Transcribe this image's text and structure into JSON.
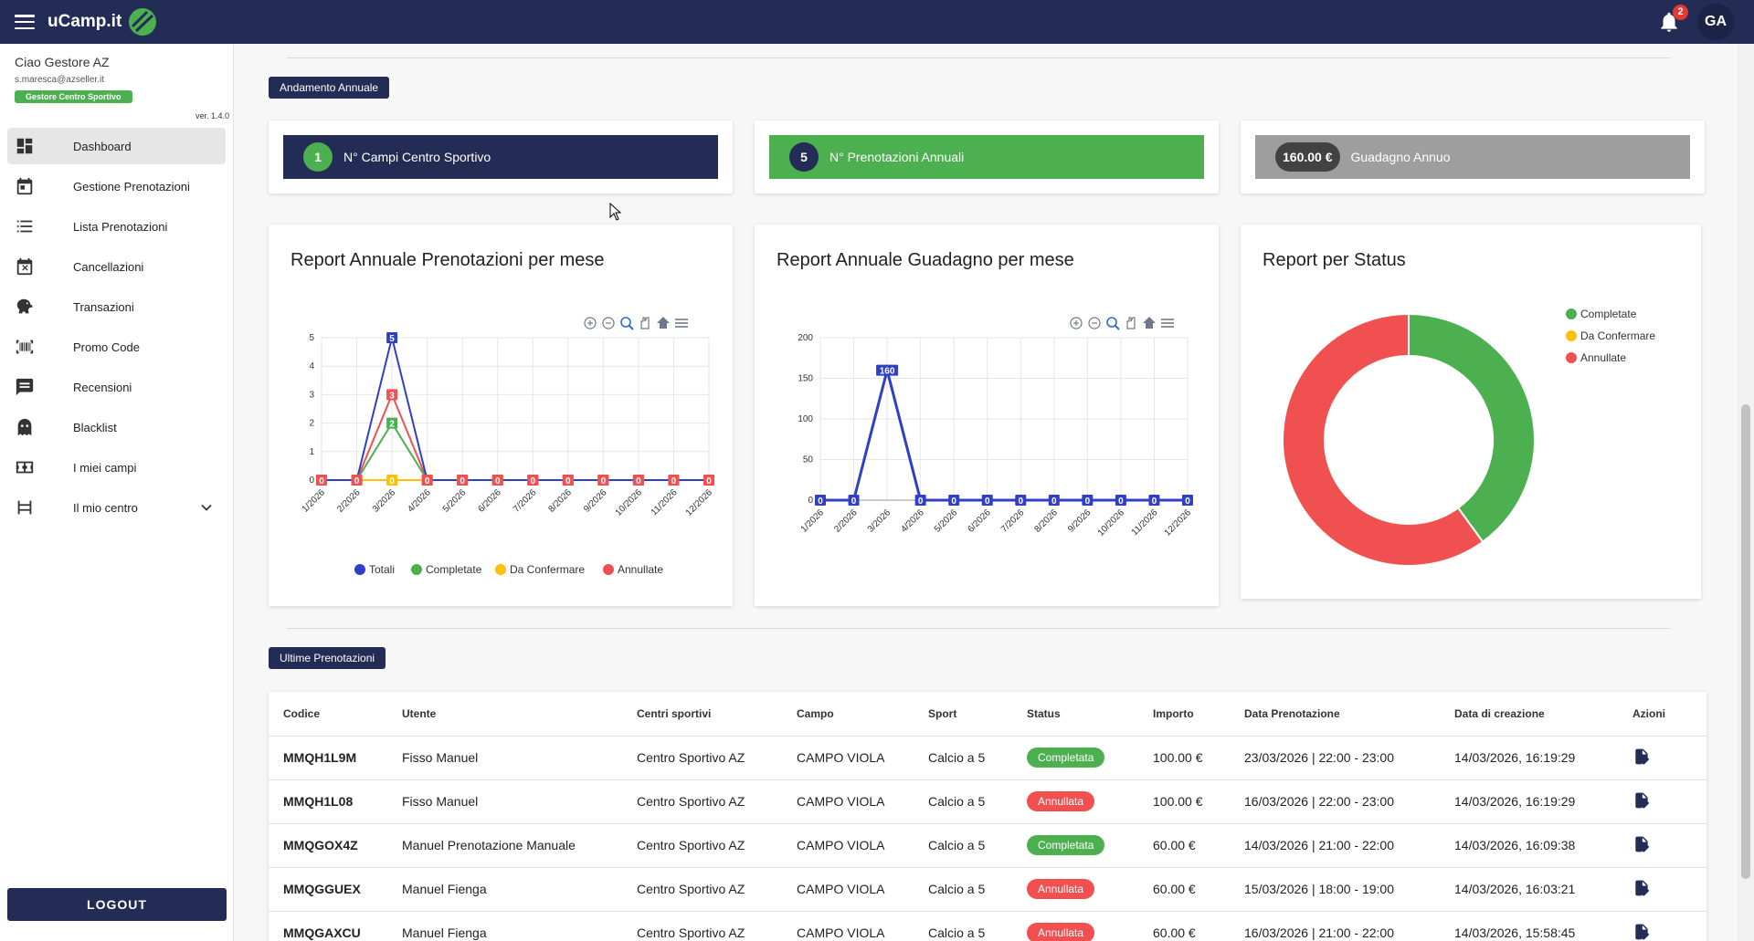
{
  "header": {
    "app_title": "uCamp.it",
    "notifications_count": "2",
    "avatar_initials": "GA"
  },
  "sidebar": {
    "greeting": "Ciao Gestore AZ",
    "email": "s.maresca@azseller.it",
    "role": "Gestore Centro Sportivo",
    "version": "ver. 1.4.0",
    "items": [
      {
        "label": "Dashboard",
        "icon": "dashboard-icon",
        "active": true
      },
      {
        "label": "Gestione Prenotazioni",
        "icon": "calendar-icon"
      },
      {
        "label": "Lista Prenotazioni",
        "icon": "list-icon"
      },
      {
        "label": "Cancellazioni",
        "icon": "cancel-calendar-icon"
      },
      {
        "label": "Transazioni",
        "icon": "piggy-bank-icon"
      },
      {
        "label": "Promo Code",
        "icon": "barcode-icon"
      },
      {
        "label": "Recensioni",
        "icon": "review-icon"
      },
      {
        "label": "Blacklist",
        "icon": "ghost-icon"
      },
      {
        "label": "I miei campi",
        "icon": "field-icon"
      },
      {
        "label": "Il mio centro",
        "icon": "center-icon",
        "expandable": true
      }
    ],
    "logout_label": "LOGOUT"
  },
  "annual": {
    "section_label": "Andamento Annuale",
    "stats": [
      {
        "value": "1",
        "label": "N° Campi Centro Sportivo",
        "color": "#232c55",
        "badge_color": "#4caf50"
      },
      {
        "value": "5",
        "label": "N° Prenotazioni Annuali",
        "color": "#4caf50",
        "badge_color": "#232c55"
      },
      {
        "value": "160.00 €",
        "label": "Guadagno Annuo",
        "color": "#9e9e9e",
        "badge_color": "#424242"
      }
    ]
  },
  "charts": {
    "bookings_title": "Report Annuale Prenotazioni per mese",
    "revenue_title": "Report Annuale Guadagno per mese",
    "status_title": "Report per Status"
  },
  "chart_data": [
    {
      "type": "line",
      "title": "Report Annuale Prenotazioni per mese",
      "categories": [
        "1/2026",
        "2/2026",
        "3/2026",
        "4/2026",
        "5/2026",
        "6/2026",
        "7/2026",
        "8/2026",
        "9/2026",
        "10/2026",
        "11/2026",
        "12/2026"
      ],
      "series": [
        {
          "name": "Totali",
          "color": "#2f3fc6",
          "values": [
            0,
            0,
            5,
            0,
            0,
            0,
            0,
            0,
            0,
            0,
            0,
            0
          ]
        },
        {
          "name": "Completate",
          "color": "#4caf50",
          "values": [
            0,
            0,
            2,
            0,
            0,
            0,
            0,
            0,
            0,
            0,
            0,
            0
          ]
        },
        {
          "name": "Da Confermare",
          "color": "#ffc107",
          "values": [
            0,
            0,
            0,
            0,
            0,
            0,
            0,
            0,
            0,
            0,
            0,
            0
          ]
        },
        {
          "name": "Annullate",
          "color": "#f05050",
          "values": [
            0,
            0,
            3,
            0,
            0,
            0,
            0,
            0,
            0,
            0,
            0,
            0
          ]
        }
      ],
      "yticks": [
        "0",
        "1",
        "2",
        "3",
        "4",
        "5"
      ],
      "ylim": [
        0,
        5
      ],
      "legend": "bottom",
      "grid": true
    },
    {
      "type": "line",
      "title": "Report Annuale Guadagno per mese",
      "categories": [
        "1/2026",
        "2/2026",
        "3/2026",
        "4/2026",
        "5/2026",
        "6/2026",
        "7/2026",
        "8/2026",
        "9/2026",
        "10/2026",
        "11/2026",
        "12/2026"
      ],
      "series": [
        {
          "color": "#2f3fc6",
          "values": [
            0,
            0,
            160,
            0,
            0,
            0,
            0,
            0,
            0,
            0,
            0,
            0
          ]
        }
      ],
      "yticks": [
        "0",
        "50",
        "100",
        "150",
        "200"
      ],
      "ylim": [
        0,
        200
      ],
      "grid": true
    },
    {
      "type": "pie",
      "title": "Report per Status",
      "labels": [
        "Completate",
        "Da Confermare",
        "Annullate"
      ],
      "values": [
        2,
        0,
        3
      ],
      "colors": [
        "#4caf50",
        "#ffc107",
        "#f05050"
      ],
      "legend": "top-right"
    }
  ],
  "bookings": {
    "section_label": "Ultime Prenotazioni",
    "columns": [
      "Codice",
      "Utente",
      "Centri sportivi",
      "Campo",
      "Sport",
      "Status",
      "Importo",
      "Data Prenotazione",
      "Data di creazione",
      "Azioni"
    ],
    "rows": [
      {
        "code": "MMQH1L9M",
        "user": "Fisso Manuel",
        "center": "Centro Sportivo AZ",
        "field": "CAMPO VIOLA",
        "sport": "Calcio a 5",
        "status": "Completata",
        "status_color": "#4caf50",
        "amount": "100.00 €",
        "booking_date": "23/03/2026 | 22:00 - 23:00",
        "created": "14/03/2026, 16:19:29"
      },
      {
        "code": "MMQH1L08",
        "user": "Fisso Manuel",
        "center": "Centro Sportivo AZ",
        "field": "CAMPO VIOLA",
        "sport": "Calcio a 5",
        "status": "Annullata",
        "status_color": "#f05050",
        "amount": "100.00 €",
        "booking_date": "16/03/2026 | 22:00 - 23:00",
        "created": "14/03/2026, 16:19:29"
      },
      {
        "code": "MMQGOX4Z",
        "user": "Manuel Prenotazione Manuale",
        "center": "Centro Sportivo AZ",
        "field": "CAMPO VIOLA",
        "sport": "Calcio a 5",
        "status": "Completata",
        "status_color": "#4caf50",
        "amount": "60.00 €",
        "booking_date": "14/03/2026 | 21:00 - 22:00",
        "created": "14/03/2026, 16:09:38"
      },
      {
        "code": "MMQGGUEX",
        "user": "Manuel Fienga",
        "center": "Centro Sportivo AZ",
        "field": "CAMPO VIOLA",
        "sport": "Calcio a 5",
        "status": "Annullata",
        "status_color": "#f05050",
        "amount": "60.00 €",
        "booking_date": "15/03/2026 | 18:00 - 19:00",
        "created": "14/03/2026, 16:03:21"
      },
      {
        "code": "MMQGAXCU",
        "user": "Manuel Fienga",
        "center": "Centro Sportivo AZ",
        "field": "CAMPO VIOLA",
        "sport": "Calcio a 5",
        "status": "Annullata",
        "status_color": "#f05050",
        "amount": "60.00 €",
        "booking_date": "16/03/2026 | 21:00 - 22:00",
        "created": "14/03/2026, 15:58:45"
      }
    ]
  }
}
